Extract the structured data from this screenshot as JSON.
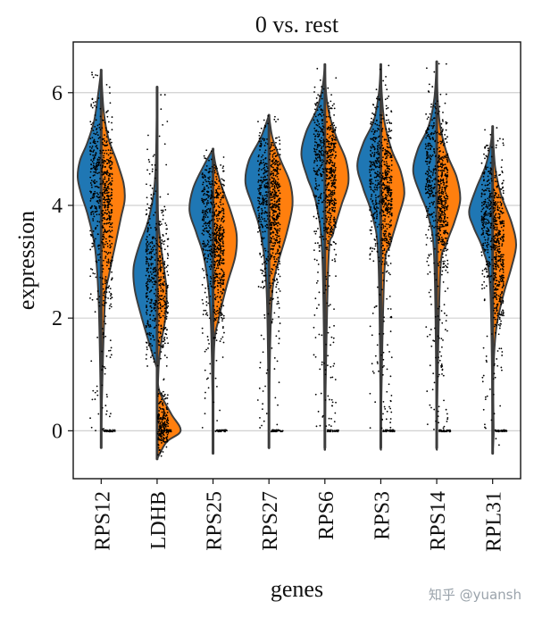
{
  "chart_data": {
    "type": "violin",
    "title": "0 vs. rest",
    "xlabel": "genes",
    "ylabel": "expression",
    "ylim": [
      -0.85,
      6.9
    ],
    "yticks": [
      0,
      2,
      4,
      6
    ],
    "grid": "horizontal",
    "split": true,
    "colors": {
      "group": "#1f77b4",
      "rest": "#ff7f0e",
      "outline": "#3d3d3d",
      "points": "#000000",
      "grid": "#d0d0d0"
    },
    "genes": [
      {
        "name": "RPS12",
        "range": [
          -0.3,
          6.4
        ],
        "left": [
          [
            -0.3,
            0
          ],
          [
            0,
            0
          ],
          [
            2.2,
            0.1
          ],
          [
            3.2,
            0.25
          ],
          [
            3.8,
            0.55
          ],
          [
            4.2,
            0.85
          ],
          [
            4.5,
            1
          ],
          [
            4.8,
            0.9
          ],
          [
            5.1,
            0.6
          ],
          [
            5.5,
            0.3
          ],
          [
            6,
            0.12
          ],
          [
            6.4,
            0
          ]
        ],
        "right": [
          [
            -0.3,
            0
          ],
          [
            0,
            0
          ],
          [
            2.2,
            0.15
          ],
          [
            2.8,
            0.35
          ],
          [
            3.3,
            0.6
          ],
          [
            3.8,
            0.85
          ],
          [
            4.1,
            1
          ],
          [
            4.4,
            0.95
          ],
          [
            4.8,
            0.65
          ],
          [
            5.2,
            0.3
          ],
          [
            5.7,
            0.1
          ],
          [
            6.4,
            0
          ]
        ],
        "bottom_right_bump": 0
      },
      {
        "name": "LDHB",
        "range": [
          -0.5,
          6.1
        ],
        "left": [
          [
            1.1,
            0
          ],
          [
            1.5,
            0.3
          ],
          [
            2,
            0.65
          ],
          [
            2.5,
            0.95
          ],
          [
            2.9,
            1
          ],
          [
            3.3,
            0.75
          ],
          [
            3.7,
            0.4
          ],
          [
            4.2,
            0.15
          ],
          [
            4.8,
            0.05
          ],
          [
            6.1,
            0
          ]
        ],
        "right": [
          [
            -0.5,
            0
          ],
          [
            -0.2,
            0.4
          ],
          [
            0,
            1
          ],
          [
            0.3,
            0.6
          ],
          [
            0.7,
            0.1
          ],
          [
            1,
            0.05
          ],
          [
            1.5,
            0.15
          ],
          [
            2,
            0.35
          ],
          [
            2.5,
            0.4
          ],
          [
            3,
            0.25
          ],
          [
            3.5,
            0.1
          ],
          [
            4,
            0.03
          ],
          [
            6.1,
            0
          ]
        ],
        "bottom_right_bump": 0
      },
      {
        "name": "RPS25",
        "range": [
          -0.4,
          5.0
        ],
        "left": [
          [
            -0.4,
            0
          ],
          [
            0,
            0
          ],
          [
            2,
            0.1
          ],
          [
            3,
            0.35
          ],
          [
            3.5,
            0.7
          ],
          [
            3.9,
            1
          ],
          [
            4.3,
            0.85
          ],
          [
            4.7,
            0.4
          ],
          [
            5,
            0
          ]
        ],
        "right": [
          [
            -0.4,
            0
          ],
          [
            0,
            0
          ],
          [
            1.5,
            0.05
          ],
          [
            2,
            0.25
          ],
          [
            2.6,
            0.6
          ],
          [
            3.1,
            0.95
          ],
          [
            3.5,
            1
          ],
          [
            3.9,
            0.75
          ],
          [
            4.3,
            0.4
          ],
          [
            4.7,
            0.12
          ],
          [
            5,
            0
          ]
        ],
        "bottom_right_bump": 0
      },
      {
        "name": "RPS27",
        "range": [
          -0.3,
          5.6
        ],
        "left": [
          [
            -0.3,
            0
          ],
          [
            0,
            0
          ],
          [
            2.5,
            0.1
          ],
          [
            3.5,
            0.35
          ],
          [
            4,
            0.7
          ],
          [
            4.4,
            1
          ],
          [
            4.8,
            0.85
          ],
          [
            5.2,
            0.35
          ],
          [
            5.6,
            0
          ]
        ],
        "right": [
          [
            -0.3,
            0
          ],
          [
            0,
            0
          ],
          [
            1.5,
            0.05
          ],
          [
            2.5,
            0.15
          ],
          [
            3,
            0.4
          ],
          [
            3.5,
            0.75
          ],
          [
            4,
            1
          ],
          [
            4.4,
            0.9
          ],
          [
            4.8,
            0.5
          ],
          [
            5.2,
            0.15
          ],
          [
            5.6,
            0
          ]
        ],
        "bottom_right_bump": 0
      },
      {
        "name": "RPS6",
        "range": [
          -0.3,
          6.5
        ],
        "left": [
          [
            -0.3,
            0
          ],
          [
            0,
            0
          ],
          [
            3,
            0.1
          ],
          [
            4,
            0.35
          ],
          [
            4.5,
            0.75
          ],
          [
            4.9,
            1
          ],
          [
            5.3,
            0.8
          ],
          [
            5.7,
            0.35
          ],
          [
            6.1,
            0.1
          ],
          [
            6.5,
            0
          ]
        ],
        "right": [
          [
            -0.3,
            0
          ],
          [
            0,
            0
          ],
          [
            3,
            0.15
          ],
          [
            3.5,
            0.35
          ],
          [
            4,
            0.7
          ],
          [
            4.4,
            1
          ],
          [
            4.8,
            0.9
          ],
          [
            5.2,
            0.5
          ],
          [
            5.6,
            0.2
          ],
          [
            6,
            0.05
          ],
          [
            6.5,
            0
          ]
        ],
        "bottom_right_bump": 0
      },
      {
        "name": "RPS3",
        "range": [
          -0.3,
          6.5
        ],
        "left": [
          [
            -0.3,
            0
          ],
          [
            0,
            0
          ],
          [
            3,
            0.1
          ],
          [
            3.8,
            0.35
          ],
          [
            4.3,
            0.75
          ],
          [
            4.7,
            1
          ],
          [
            5.1,
            0.75
          ],
          [
            5.5,
            0.3
          ],
          [
            6,
            0.08
          ],
          [
            6.5,
            0
          ]
        ],
        "right": [
          [
            -0.3,
            0
          ],
          [
            0,
            0
          ],
          [
            2.8,
            0.15
          ],
          [
            3.3,
            0.4
          ],
          [
            3.8,
            0.75
          ],
          [
            4.2,
            1
          ],
          [
            4.6,
            0.85
          ],
          [
            5,
            0.45
          ],
          [
            5.5,
            0.15
          ],
          [
            6,
            0.04
          ],
          [
            6.5,
            0
          ]
        ],
        "bottom_right_bump": 0
      },
      {
        "name": "RPS14",
        "range": [
          -0.3,
          6.55
        ],
        "left": [
          [
            -0.3,
            0
          ],
          [
            0,
            0
          ],
          [
            3,
            0.1
          ],
          [
            3.8,
            0.35
          ],
          [
            4.2,
            0.7
          ],
          [
            4.6,
            1
          ],
          [
            5,
            0.8
          ],
          [
            5.4,
            0.35
          ],
          [
            5.9,
            0.1
          ],
          [
            6.55,
            0
          ]
        ],
        "right": [
          [
            -0.3,
            0
          ],
          [
            0,
            0
          ],
          [
            2.8,
            0.15
          ],
          [
            3.3,
            0.4
          ],
          [
            3.7,
            0.75
          ],
          [
            4.1,
            1
          ],
          [
            4.5,
            0.85
          ],
          [
            4.9,
            0.45
          ],
          [
            5.4,
            0.15
          ],
          [
            5.9,
            0.04
          ],
          [
            6.55,
            0
          ]
        ],
        "bottom_right_bump": 0
      },
      {
        "name": "RPL31",
        "range": [
          -0.4,
          5.4
        ],
        "left": [
          [
            -0.4,
            0
          ],
          [
            0,
            0
          ],
          [
            2.5,
            0.1
          ],
          [
            3.2,
            0.4
          ],
          [
            3.6,
            0.8
          ],
          [
            3.9,
            1
          ],
          [
            4.3,
            0.7
          ],
          [
            4.7,
            0.3
          ],
          [
            5.1,
            0.08
          ],
          [
            5.4,
            0
          ]
        ],
        "right": [
          [
            -0.4,
            0
          ],
          [
            -0.1,
            0.04
          ],
          [
            0.1,
            0.04
          ],
          [
            1,
            0.03
          ],
          [
            1.8,
            0.15
          ],
          [
            2.4,
            0.45
          ],
          [
            2.9,
            0.8
          ],
          [
            3.3,
            1
          ],
          [
            3.7,
            0.8
          ],
          [
            4.2,
            0.35
          ],
          [
            4.7,
            0.1
          ],
          [
            5.4,
            0
          ]
        ],
        "bottom_right_bump": 0
      }
    ]
  },
  "watermark": "知乎 @yuansh"
}
